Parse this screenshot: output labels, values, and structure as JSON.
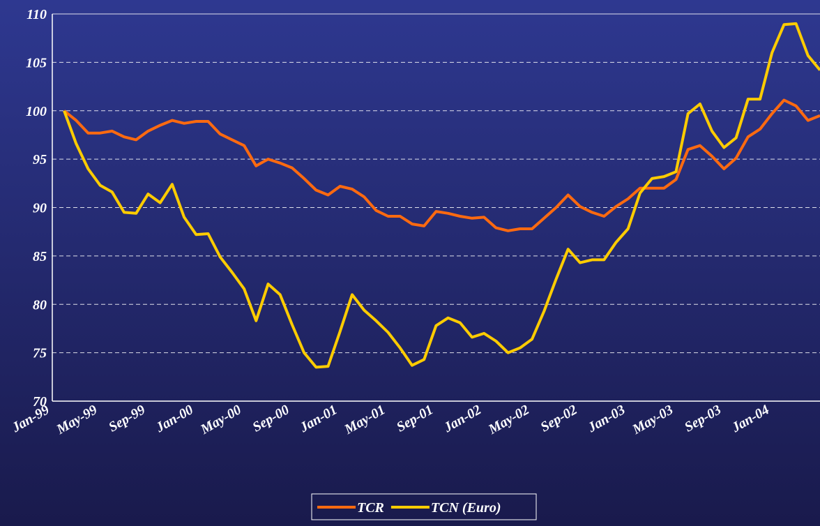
{
  "chart_data": {
    "type": "line",
    "categories": [
      "Jan-99",
      null,
      null,
      null,
      "May-99",
      null,
      null,
      null,
      "Sep-99",
      null,
      null,
      null,
      "Jan-00",
      null,
      null,
      null,
      "May-00",
      null,
      null,
      null,
      "Sep-00",
      null,
      null,
      null,
      "Jan-01",
      null,
      null,
      null,
      "May-01",
      null,
      null,
      null,
      "Sep-01",
      null,
      null,
      null,
      "Jan-02",
      null,
      null,
      null,
      "May-02",
      null,
      null,
      null,
      "Sep-02",
      null,
      null,
      null,
      "Jan-03",
      null,
      null,
      null,
      "May-03",
      null,
      null,
      null,
      "Sep-03",
      null,
      null,
      null,
      "Jan-04",
      null,
      null,
      null
    ],
    "series": [
      {
        "name": "TCR",
        "color": "#ff6a10",
        "values": [
          100,
          99,
          97.7,
          97.7,
          97.9,
          97.3,
          97,
          97.9,
          98.5,
          99,
          98.7,
          98.9,
          98.9,
          97.6,
          97,
          96.4,
          94.3,
          95,
          94.6,
          94.1,
          93,
          91.8,
          91.3,
          92.2,
          91.9,
          91.1,
          89.7,
          89.1,
          89.1,
          88.3,
          88.1,
          89.6,
          89.4,
          89.1,
          88.9,
          89,
          87.9,
          87.6,
          87.8,
          87.8,
          88.9,
          90,
          91.3,
          90.1,
          89.5,
          89.1,
          90.1,
          90.9,
          92,
          92,
          92,
          92.9,
          96,
          96.4,
          95.3,
          94,
          95.1,
          97.3,
          98.1,
          99.7,
          101.1,
          100.5,
          99,
          99.5
        ]
      },
      {
        "name": "TCN (Euro)",
        "color": "#ffcc00",
        "values": [
          100,
          96.6,
          94,
          92.3,
          91.6,
          89.5,
          89.4,
          91.4,
          90.5,
          92.4,
          89,
          87.2,
          87.3,
          84.9,
          83.3,
          81.6,
          78.3,
          82.1,
          81,
          77.9,
          75,
          73.5,
          73.6,
          77.2,
          81,
          79.4,
          78.3,
          77.1,
          75.5,
          73.7,
          74.3,
          77.8,
          78.6,
          78.1,
          76.6,
          77,
          76.2,
          75,
          75.5,
          76.4,
          79.3,
          82.6,
          85.7,
          84.3,
          84.6,
          84.6,
          86.4,
          87.8,
          91.5,
          93,
          93.2,
          93.7,
          99.7,
          100.7,
          97.9,
          96.2,
          97.2,
          101.2,
          101.2,
          106,
          108.9,
          109,
          105.7,
          104.2
        ]
      }
    ],
    "ylim": [
      70,
      110
    ],
    "yticks": [
      70,
      75,
      80,
      85,
      90,
      95,
      100,
      105,
      110
    ],
    "grid": true,
    "legend": "bottom"
  }
}
